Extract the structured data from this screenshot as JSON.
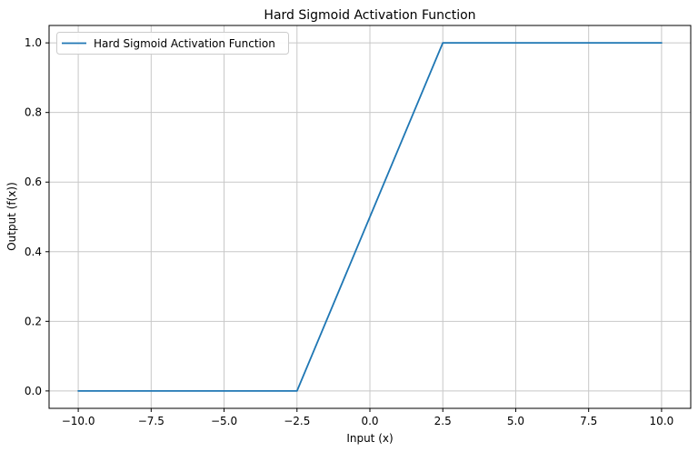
{
  "chart_data": {
    "type": "line",
    "title": "Hard Sigmoid Activation Function",
    "xlabel": "Input (x)",
    "ylabel": "Output (f(x))",
    "xlim": [
      -11,
      11
    ],
    "ylim": [
      -0.05,
      1.05
    ],
    "grid": true,
    "legend": {
      "position": "upper left",
      "entries": [
        "Hard Sigmoid Activation Function"
      ]
    },
    "series": [
      {
        "name": "Hard Sigmoid Activation Function",
        "color": "#1f77b4",
        "x": [
          -10,
          -2.5,
          0,
          2.5,
          10
        ],
        "y": [
          0,
          0,
          0.5,
          1,
          1
        ]
      }
    ],
    "xticks": {
      "values": [
        -10,
        -7.5,
        -5,
        -2.5,
        0,
        2.5,
        5,
        7.5,
        10
      ],
      "labels": [
        "−10.0",
        "−7.5",
        "−5.0",
        "−2.5",
        "0.0",
        "2.5",
        "5.0",
        "7.5",
        "10.0"
      ]
    },
    "yticks": {
      "values": [
        0,
        0.2,
        0.4,
        0.6,
        0.8,
        1.0
      ],
      "labels": [
        "0.0",
        "0.2",
        "0.4",
        "0.6",
        "0.8",
        "1.0"
      ]
    },
    "colors": {
      "line": "#1f77b4",
      "grid": "#c8c8c8",
      "spine": "#000000",
      "background": "#ffffff",
      "legend_border": "#cccccc",
      "legend_background": "#ffffff"
    }
  }
}
